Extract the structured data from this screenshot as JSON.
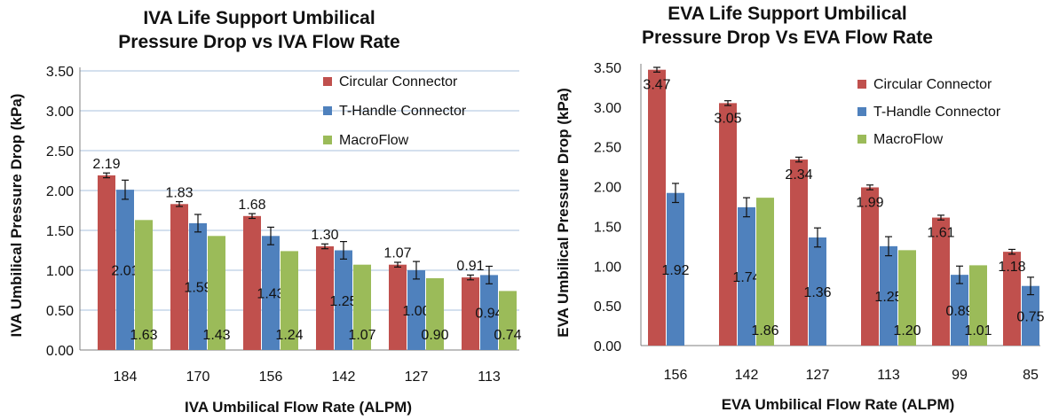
{
  "chart_data": [
    {
      "type": "bar",
      "title_line1": "IVA Life Support Umbilical",
      "title_line2": "Pressure Drop vs IVA Flow Rate",
      "xlabel": "IVA Umbilical Flow Rate (ALPM)",
      "ylabel": "IVA Umbilical Pressure Drop (kPa)",
      "ylim": [
        0,
        3.5
      ],
      "ytick_step": 0.5,
      "yticks": [
        "0.00",
        "0.50",
        "1.00",
        "1.50",
        "2.00",
        "2.50",
        "3.00",
        "3.50"
      ],
      "grid": true,
      "legend_position": "top-right",
      "categories": [
        "184",
        "170",
        "156",
        "142",
        "127",
        "113"
      ],
      "series": [
        {
          "name": "Circular Connector",
          "color": "#c0504d",
          "values": [
            2.19,
            1.83,
            1.68,
            1.3,
            1.07,
            0.91
          ],
          "labels": [
            "2.19",
            "1.83",
            "1.68",
            "1.30",
            "1.07",
            "0.91"
          ],
          "errors": [
            0.03,
            0.03,
            0.03,
            0.03,
            0.03,
            0.03
          ]
        },
        {
          "name": "T-Handle Connector",
          "color": "#4f81bd",
          "values": [
            2.01,
            1.59,
            1.43,
            1.25,
            1.0,
            0.94
          ],
          "labels": [
            "2.01",
            "1.59",
            "1.43",
            "1.25",
            "1.00",
            "0.94"
          ],
          "errors": [
            0.12,
            0.11,
            0.11,
            0.11,
            0.11,
            0.11
          ]
        },
        {
          "name": "MacroFlow",
          "color": "#9bbb59",
          "values": [
            1.63,
            1.43,
            1.24,
            1.07,
            0.9,
            0.74
          ],
          "labels": [
            "1.63",
            "1.43",
            "1.24",
            "1.07",
            "0.90",
            "0.74"
          ],
          "errors": null
        }
      ]
    },
    {
      "type": "bar",
      "title_line1": "EVA Life Support Umbilical",
      "title_line2": "Pressure Drop Vs EVA Flow Rate",
      "xlabel": "EVA Umbilical Flow Rate (ALPM)",
      "ylabel": "EVA Umbilical Pressure Drop (kPa)",
      "ylim": [
        0,
        3.5
      ],
      "ytick_step": 0.5,
      "yticks": [
        "0.00",
        "0.50",
        "1.00",
        "1.50",
        "2.00",
        "2.50",
        "3.00",
        "3.50"
      ],
      "grid": false,
      "legend_position": "top-right",
      "categories": [
        "156",
        "142",
        "127",
        "113",
        "99",
        "85"
      ],
      "series": [
        {
          "name": "Circular Connector",
          "color": "#c0504d",
          "values": [
            3.47,
            3.05,
            2.34,
            1.99,
            1.61,
            1.18
          ],
          "labels": [
            "3.47",
            "3.05",
            "2.34",
            "1.99",
            "1.61",
            "1.18"
          ],
          "errors": [
            0.03,
            0.03,
            0.03,
            0.03,
            0.03,
            0.03
          ]
        },
        {
          "name": "T-Handle Connector",
          "color": "#4f81bd",
          "values": [
            1.92,
            1.74,
            1.36,
            1.25,
            0.89,
            0.75
          ],
          "labels": [
            "1.92",
            "1.74",
            "1.36",
            "1.25",
            "0.89",
            "0.75"
          ],
          "errors": [
            0.12,
            0.12,
            0.12,
            0.12,
            0.11,
            0.11
          ]
        },
        {
          "name": "MacroFlow",
          "color": "#9bbb59",
          "values": [
            null,
            1.86,
            null,
            1.2,
            1.01,
            null
          ],
          "labels": [
            null,
            "1.86",
            null,
            "1.20",
            "1.01",
            null
          ],
          "errors": null
        }
      ]
    }
  ]
}
